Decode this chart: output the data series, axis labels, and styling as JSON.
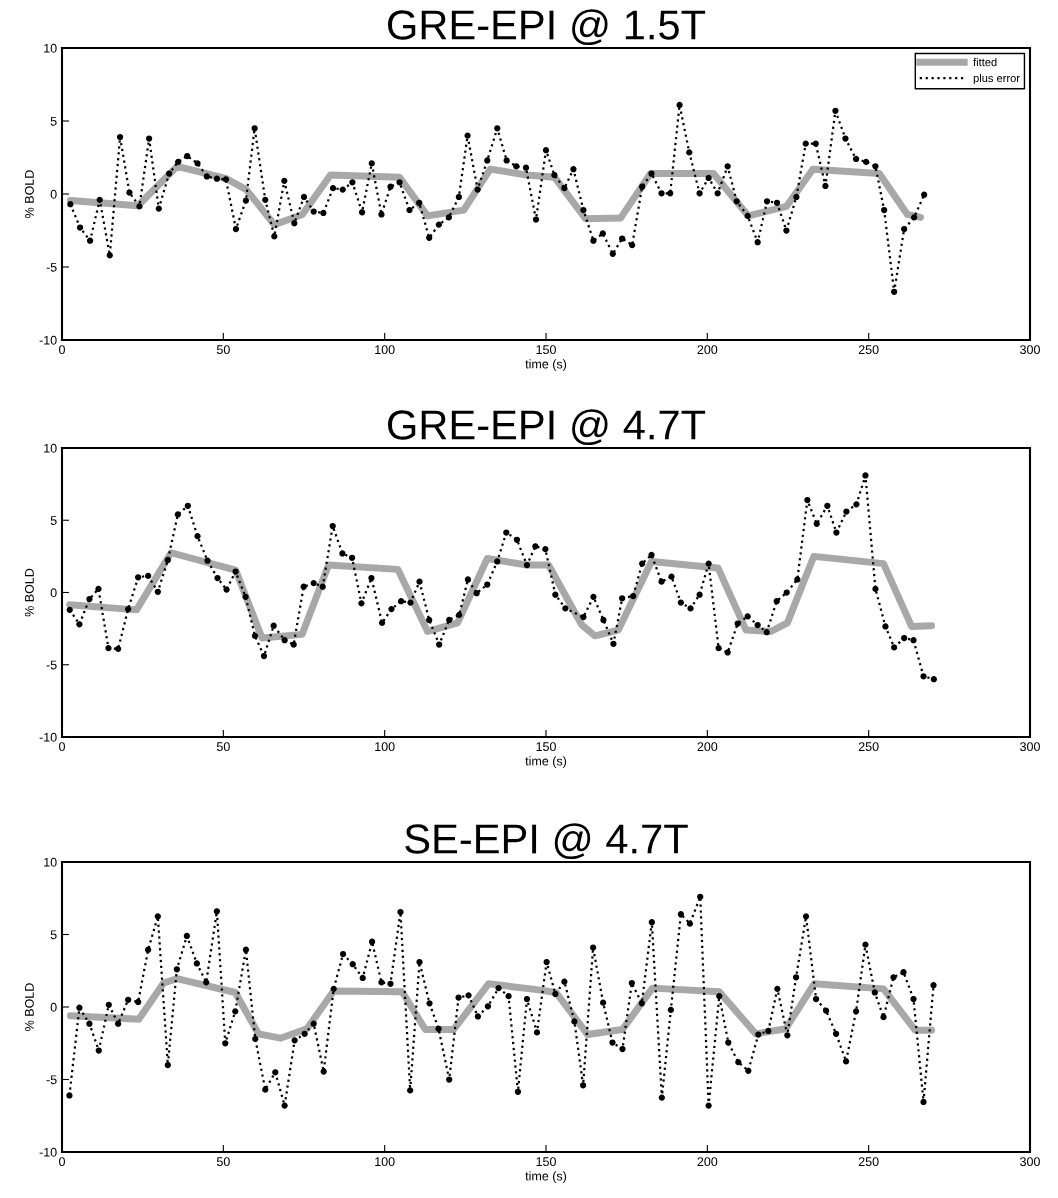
{
  "chart_data": [
    {
      "type": "line",
      "title": "GRE-EPI @ 1.5T",
      "xlabel": "time (s)",
      "ylabel": "% BOLD",
      "xlim": [
        0,
        300
      ],
      "xticks": [
        0,
        50,
        100,
        150,
        200,
        250,
        300
      ],
      "ylim": [
        -10,
        10
      ],
      "yticks": [
        -10,
        -5,
        0,
        5,
        10
      ],
      "legend": "top right",
      "series": [
        {
          "name": "fitted",
          "color": "#a8a8a8",
          "line_style": "solid",
          "marker": "none",
          "x": [
            2.6,
            23.5,
            35.7,
            51,
            57.1,
            65.8,
            74.5,
            83.2,
            104.6,
            113.3,
            124.5,
            132.7,
            144,
            152.6,
            162.3,
            173.1,
            182.4,
            201.9,
            212.7,
            224.5,
            232.7,
            253.3,
            262,
            266.1
          ],
          "values": [
            -0.45,
            -0.8,
            1.9,
            1.05,
            0.3,
            -2.1,
            -1.4,
            1.3,
            1.15,
            -1.5,
            -1.1,
            1.7,
            1.3,
            1.15,
            -1.7,
            -1.65,
            1.4,
            1.4,
            -1.5,
            -0.85,
            1.7,
            1.4,
            -1.4,
            -1.6
          ]
        },
        {
          "name": "plus error",
          "color": "#000000",
          "line_style": "dotted",
          "marker": "circle",
          "x": [
            2.6,
            5.6,
            8.7,
            11.7,
            14.8,
            18,
            20.9,
            24,
            27,
            30,
            33.2,
            36,
            38.8,
            42,
            44.9,
            48,
            50.8,
            53.9,
            57,
            59.7,
            63,
            65.8,
            68.9,
            72,
            75,
            78,
            81,
            84,
            87,
            90,
            93,
            96,
            99,
            101.8,
            104.6,
            107.7,
            110.7,
            113.8,
            116.8,
            119.9,
            123,
            125.7,
            128.8,
            131.8,
            134.9,
            137.8,
            140.8,
            143.8,
            146.9,
            150,
            152.6,
            155.7,
            158.5,
            161.6,
            164.7,
            167.6,
            170.7,
            173.6,
            176.7,
            179.8,
            182.7,
            185.8,
            188.5,
            191.4,
            194.4,
            197.6,
            200.4,
            203.2,
            206.3,
            209.1,
            212.5,
            215.6,
            218.5,
            221.6,
            224.5,
            227.6,
            230.5,
            233.6,
            236.6,
            239.7,
            242.8,
            246.1,
            249.2,
            252.1,
            254.8,
            257.9,
            261,
            264.1,
            267.2
          ],
          "values": [
            -0.7,
            -2.3,
            -3.2,
            -0.4,
            -4.2,
            3.9,
            0.1,
            -0.85,
            3.8,
            -1,
            1.4,
            2.2,
            2.6,
            2.1,
            1.2,
            1.05,
            1,
            -2.4,
            -0.45,
            4.5,
            -0.4,
            -2.9,
            0.9,
            -2,
            -0.2,
            -1.2,
            -1.3,
            0.4,
            0.3,
            0.8,
            -1.25,
            2.1,
            -1.4,
            0.5,
            0.8,
            -1.1,
            -0.6,
            -3,
            -2.1,
            -1.6,
            -0.2,
            4,
            0.3,
            2.3,
            4.5,
            2.3,
            1.9,
            1.8,
            -1.75,
            3,
            1.3,
            0.4,
            1.7,
            -1.1,
            -3.2,
            -2.7,
            -4.1,
            -3.05,
            -3.5,
            0.5,
            1.4,
            0.05,
            0.05,
            6.1,
            2.85,
            0.05,
            1.1,
            0.05,
            1.9,
            -0.5,
            -1.5,
            -3.3,
            -0.5,
            -0.6,
            -2.5,
            -0.2,
            3.45,
            3.45,
            0.55,
            5.7,
            3.8,
            2.4,
            2.2,
            1.9,
            -1.1,
            -6.7,
            -2.4,
            -1.6,
            -0.05
          ]
        }
      ]
    },
    {
      "type": "line",
      "title": "GRE-EPI @ 4.7T",
      "xlabel": "time (s)",
      "ylabel": "% BOLD",
      "xlim": [
        0,
        300
      ],
      "xticks": [
        0,
        50,
        100,
        150,
        200,
        250,
        300
      ],
      "ylim": [
        -10,
        10
      ],
      "yticks": [
        -10,
        -5,
        0,
        5,
        10
      ],
      "series": [
        {
          "color": "#a8a8a8",
          "line_style": "solid",
          "marker": "none",
          "x": [
            2.4,
            23.1,
            33.8,
            53.8,
            62,
            74.4,
            82.6,
            104.1,
            113.3,
            122.6,
            131.8,
            144.1,
            150.8,
            161.1,
            165.2,
            172.4,
            182.7,
            203.3,
            212,
            219.7,
            224.8,
            233,
            254.6,
            263.3,
            269.5
          ],
          "values": [
            -0.85,
            -1.2,
            2.75,
            1.55,
            -3.15,
            -2.9,
            1.9,
            1.6,
            -2.7,
            -2.1,
            2.35,
            1.9,
            1.9,
            -2.25,
            -3,
            -2.6,
            2.15,
            1.7,
            -2.6,
            -2.7,
            -2.1,
            2.5,
            2,
            -2.35,
            -2.3
          ]
        },
        {
          "color": "#000000",
          "line_style": "dotted",
          "marker": "circle",
          "x": [
            2.4,
            5.4,
            8.5,
            11.3,
            14.4,
            17.4,
            20.5,
            23.6,
            26.7,
            29.7,
            32.8,
            35.9,
            39,
            42,
            45.1,
            48.2,
            51,
            53.8,
            56.9,
            59.8,
            62.6,
            65.6,
            69,
            71.8,
            74.9,
            78,
            80.8,
            83.9,
            86.9,
            89.9,
            92.8,
            95.9,
            99.2,
            102.1,
            105.1,
            108,
            110.8,
            113.8,
            116.9,
            120,
            123.1,
            125.8,
            128.5,
            131.8,
            134.9,
            137.7,
            141,
            144.1,
            146.7,
            149.8,
            152.9,
            156,
            161.6,
            164.7,
            167.8,
            170.9,
            173.6,
            177,
            179.8,
            182.7,
            185.8,
            188.9,
            191.8,
            194.8,
            197.6,
            200.4,
            203.5,
            206.3,
            209.4,
            212.5,
            215.6,
            218.4,
            221.5,
            224.6,
            227.9,
            231,
            233.9,
            237.2,
            240,
            243.1,
            246.2,
            249,
            252.1,
            255.2,
            257.9,
            261,
            263.9,
            267,
            270.2
          ],
          "values": [
            -1.2,
            -2.2,
            -0.45,
            0.25,
            -3.85,
            -3.9,
            -1.15,
            1.05,
            1.15,
            0.05,
            2.25,
            5.4,
            6,
            3.9,
            2.2,
            1,
            0.2,
            1.45,
            -0.3,
            -3,
            -4.4,
            -2.3,
            -3.3,
            -3.6,
            0.4,
            0.65,
            0.4,
            4.6,
            2.7,
            2.4,
            -0.75,
            1,
            -2.1,
            -1.15,
            -0.6,
            -0.7,
            0.75,
            -1.9,
            -3.6,
            -1.9,
            -1.55,
            0.9,
            -0.05,
            0.55,
            2.15,
            4.15,
            3.65,
            1.9,
            3.2,
            3,
            -0.15,
            -1.1,
            -1.7,
            -0.3,
            -1.9,
            -3.55,
            -0.4,
            -0.25,
            2,
            2.6,
            0.75,
            1.1,
            -0.7,
            -1.1,
            -0.15,
            2,
            -3.85,
            -4.15,
            -2.15,
            -1.65,
            -2.25,
            -2.75,
            -0.6,
            0,
            0.9,
            6.4,
            4.75,
            6,
            4.15,
            5.6,
            6.1,
            8.1,
            0.25,
            -2.35,
            -3.8,
            -3.15,
            -3.3,
            -5.8,
            -6
          ]
        }
      ]
    },
    {
      "type": "line",
      "title": "SE-EPI @ 4.7T",
      "xlabel": "time (s)",
      "ylabel": "% BOLD",
      "xlim": [
        0,
        300
      ],
      "xticks": [
        0,
        50,
        100,
        150,
        200,
        250,
        300
      ],
      "ylim": [
        -10,
        10
      ],
      "yticks": [
        -10,
        -5,
        0,
        5,
        10
      ],
      "series": [
        {
          "color": "#a8a8a8",
          "line_style": "solid",
          "marker": "none",
          "x": [
            2.6,
            23.8,
            31.5,
            35.6,
            53.7,
            60.9,
            67.7,
            75.9,
            84.2,
            105.4,
            112.6,
            121.4,
            132.2,
            147.2,
            153.1,
            162.9,
            173.7,
            183,
            203.7,
            215,
            224.3,
            233.1,
            254.6,
            264.4,
            269.5
          ],
          "values": [
            -0.6,
            -0.85,
            1.65,
            1.95,
            1,
            -1.85,
            -2.15,
            -1.5,
            1.1,
            1.05,
            -1.55,
            -1.55,
            1.6,
            1.2,
            1,
            -1.9,
            -1.55,
            1.3,
            1.05,
            -1.85,
            -1.5,
            1.6,
            1.25,
            -1.6,
            -1.6
          ]
        },
        {
          "color": "#000000",
          "line_style": "dotted",
          "marker": "circle",
          "x": [
            2.3,
            5.4,
            8.5,
            11.4,
            14.5,
            17.4,
            20.5,
            23.6,
            26.7,
            29.7,
            32.8,
            35.6,
            38.7,
            41.8,
            44.7,
            48,
            50.6,
            53.7,
            57,
            59.9,
            63,
            66.1,
            69,
            72.1,
            75.2,
            78,
            81.1,
            84.2,
            87.1,
            90.1,
            93.2,
            96.1,
            99,
            101.8,
            104.9,
            107.9,
            110.8,
            113.9,
            116.7,
            120,
            122.9,
            126,
            128.9,
            132,
            135.3,
            138.4,
            141.3,
            144.1,
            147.2,
            150.2,
            152.9,
            155.7,
            158.8,
            161.5,
            164.6,
            167.7,
            170.6,
            173.7,
            176.6,
            179.7,
            182.8,
            185.9,
            188.7,
            191.8,
            194.6,
            197.8,
            200.4,
            203.7,
            206.5,
            209.6,
            212.7,
            215.8,
            218.9,
            221.7,
            224.8,
            227.5,
            230.6,
            233.7,
            236.8,
            239.9,
            243,
            246.1,
            249,
            251.9,
            254.6,
            257.7,
            260.8,
            263.9,
            267,
            270.1
          ],
          "values": [
            -6.1,
            -0.05,
            -1.15,
            -3,
            0.15,
            -1.15,
            0.5,
            0.35,
            3.95,
            6.25,
            -4,
            2.6,
            4.9,
            3,
            1.7,
            6.6,
            -2.5,
            -0.3,
            3.95,
            -2.2,
            -5.7,
            -4.5,
            -6.8,
            -2.3,
            -1.85,
            -1.15,
            -4.45,
            1.25,
            3.65,
            2.95,
            2,
            4.5,
            1.7,
            1.6,
            6.55,
            -5.75,
            3.1,
            0.25,
            -1.5,
            -5,
            0.65,
            0.8,
            -0.65,
            0.05,
            1.3,
            0.75,
            -5.85,
            0.55,
            -1.75,
            3.1,
            0.9,
            1.75,
            -1,
            -5.4,
            4.1,
            0.3,
            -2.45,
            -2.9,
            1.65,
            0.25,
            5.85,
            -6.25,
            -0.2,
            6.4,
            5.75,
            7.6,
            -6.8,
            0.75,
            -2.45,
            -3.8,
            -4.4,
            -1.9,
            -1.65,
            1.25,
            -1.95,
            2.05,
            6.25,
            0.55,
            -0.25,
            -1.85,
            -3.75,
            -0.3,
            4.3,
            1,
            -0.7,
            2.05,
            2.4,
            0.55,
            -6.55,
            1.5
          ]
        }
      ]
    }
  ]
}
